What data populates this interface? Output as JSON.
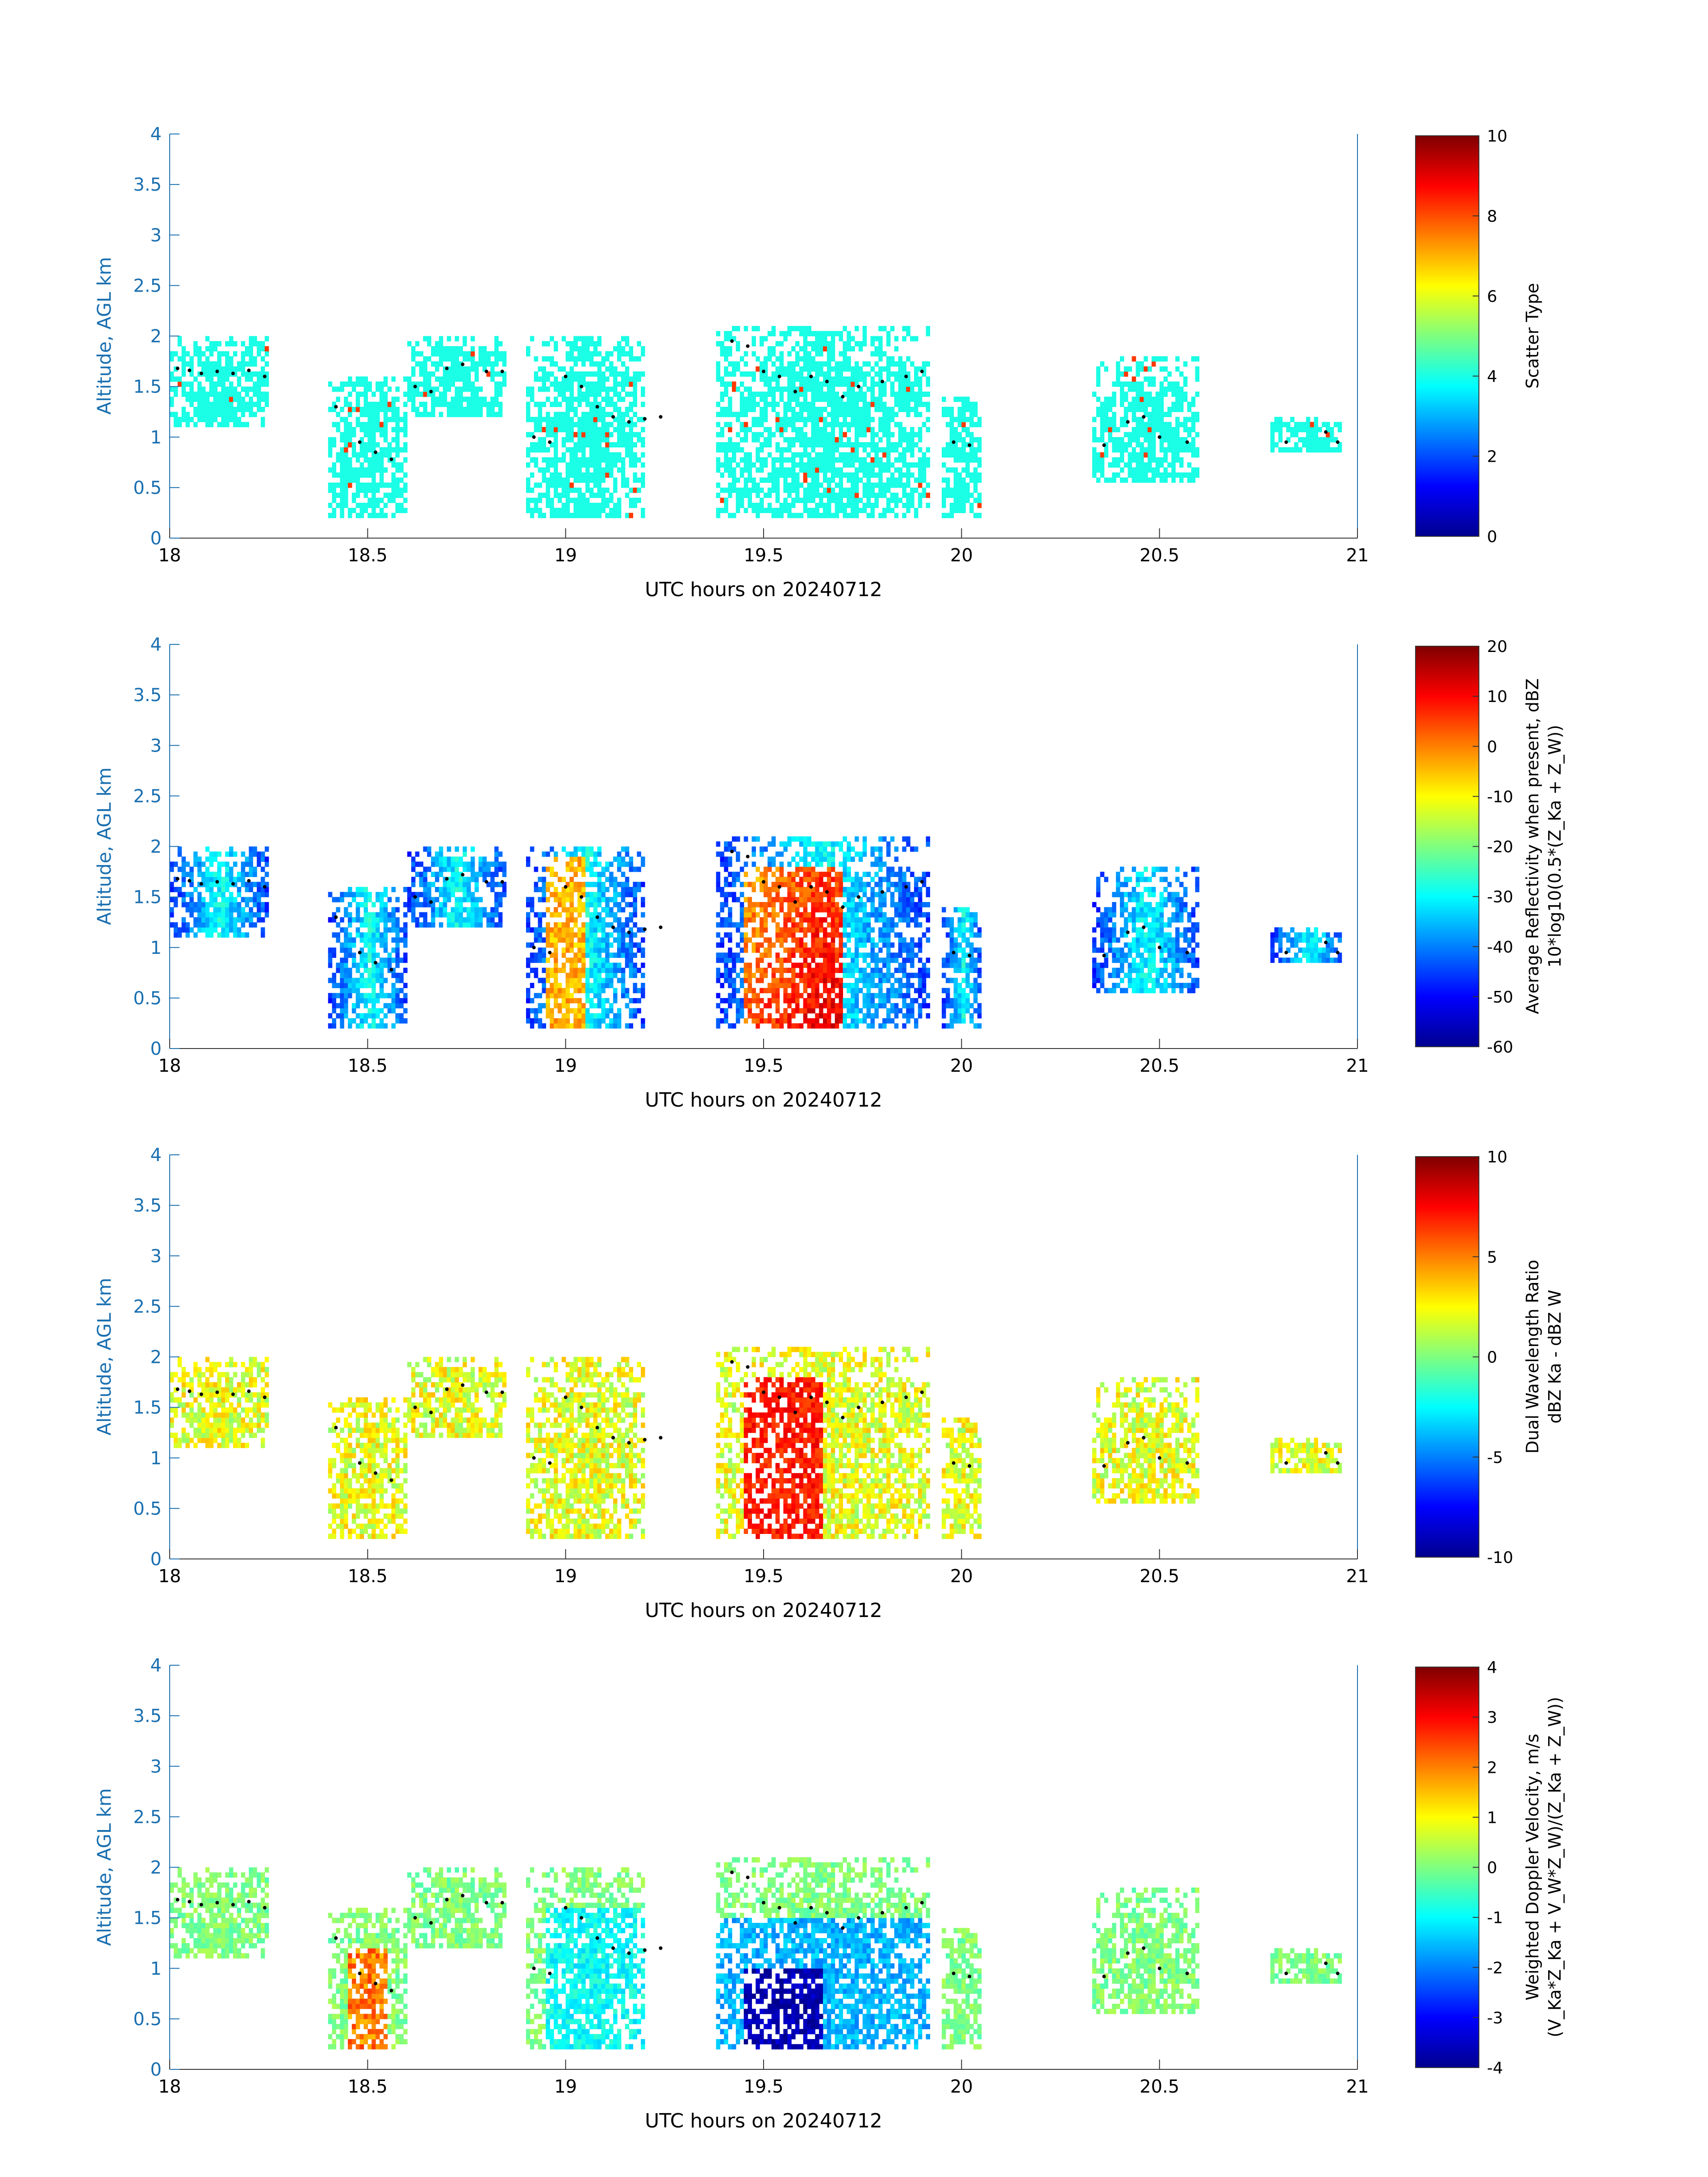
{
  "figure_date": "20240712",
  "chart_data": [
    {
      "type": "heatmap",
      "variable": "Scatter Type",
      "xlabel": "UTC hours on 20240712",
      "ylabel": "Altitude, AGL km",
      "xlim": [
        18,
        21
      ],
      "ylim": [
        0,
        4
      ],
      "x_ticks": [
        "18",
        "18.5",
        "19",
        "19.5",
        "20",
        "20.5",
        "21"
      ],
      "y_ticks": [
        "0",
        "0.5",
        "1",
        "1.5",
        "2",
        "2.5",
        "3",
        "3.5",
        "4"
      ],
      "colorbar": {
        "label_lines": [
          "Scatter Type"
        ],
        "range": [
          0,
          10
        ],
        "ticks": [
          "0",
          "2",
          "4",
          "6",
          "8",
          "10"
        ]
      },
      "dominant_value": 4,
      "colormap": "jet"
    },
    {
      "type": "heatmap",
      "variable": "Average Reflectivity",
      "xlabel": "UTC hours on 20240712",
      "ylabel": "Altitude, AGL km",
      "xlim": [
        18,
        21
      ],
      "ylim": [
        0,
        4
      ],
      "x_ticks": [
        "18",
        "18.5",
        "19",
        "19.5",
        "20",
        "20.5",
        "21"
      ],
      "y_ticks": [
        "0",
        "0.5",
        "1",
        "1.5",
        "2",
        "2.5",
        "3",
        "3.5",
        "4"
      ],
      "colorbar": {
        "label_lines": [
          "Average Reflectivity when present, dBZ",
          "10*log10(0.5*(Zₖₐ + Zᵥᵥ))"
        ],
        "label_display": [
          "Average Reflectivity when present, dBZ",
          "10*log10(0.5*(Z_Ka + Z_W))"
        ],
        "range": [
          -60,
          20
        ],
        "ticks": [
          "-60",
          "-50",
          "-40",
          "-30",
          "-20",
          "-10",
          "0",
          "10",
          "20"
        ]
      },
      "colormap": "jet"
    },
    {
      "type": "heatmap",
      "variable": "Dual Wavelength Ratio",
      "xlabel": "UTC hours on 20240712",
      "ylabel": "Altitude, AGL km",
      "xlim": [
        18,
        21
      ],
      "ylim": [
        0,
        4
      ],
      "x_ticks": [
        "18",
        "18.5",
        "19",
        "19.5",
        "20",
        "20.5",
        "21"
      ],
      "y_ticks": [
        "0",
        "0.5",
        "1",
        "1.5",
        "2",
        "2.5",
        "3",
        "3.5",
        "4"
      ],
      "colorbar": {
        "label_display": [
          "Dual Wavelength Ratio",
          "dBZ Ka - dBZ W"
        ],
        "range": [
          -10,
          10
        ],
        "ticks": [
          "-10",
          "-5",
          "0",
          "5",
          "10"
        ]
      },
      "colormap": "jet"
    },
    {
      "type": "heatmap",
      "variable": "Weighted Doppler Velocity",
      "xlabel": "UTC hours on 20240712",
      "ylabel": "Altitude, AGL km",
      "xlim": [
        18,
        21
      ],
      "ylim": [
        0,
        4
      ],
      "x_ticks": [
        "18",
        "18.5",
        "19",
        "19.5",
        "20",
        "20.5",
        "21"
      ],
      "y_ticks": [
        "0",
        "0.5",
        "1",
        "1.5",
        "2",
        "2.5",
        "3",
        "3.5",
        "4"
      ],
      "colorbar": {
        "label_display": [
          "Weighted Doppler Velocity, m/s",
          "(V_Ka*Z_Ka + V_W*Z_W)/(Z_Ka + Z_W))"
        ],
        "range": [
          -4,
          4
        ],
        "ticks": [
          "-4",
          "-3",
          "-2",
          "-1",
          "0",
          "1",
          "2",
          "3",
          "4"
        ]
      },
      "colormap": "jet"
    }
  ],
  "echo_regions": [
    {
      "t0": 18.0,
      "t1": 18.25,
      "z0": 1.1,
      "z1": 2.0
    },
    {
      "t0": 18.4,
      "t1": 18.6,
      "z0": 0.2,
      "z1": 1.6
    },
    {
      "t0": 18.6,
      "t1": 18.85,
      "z0": 1.2,
      "z1": 2.0
    },
    {
      "t0": 18.9,
      "t1": 19.2,
      "z0": 0.2,
      "z1": 2.0
    },
    {
      "t0": 19.38,
      "t1": 19.92,
      "z0": 0.2,
      "z1": 2.1
    },
    {
      "t0": 19.95,
      "t1": 20.05,
      "z0": 0.2,
      "z1": 1.4
    },
    {
      "t0": 20.33,
      "t1": 20.6,
      "z0": 0.5,
      "z1": 1.8
    },
    {
      "t0": 20.78,
      "t1": 20.97,
      "z0": 0.85,
      "z1": 1.2
    }
  ],
  "cloud_base_points": [
    [
      18.02,
      1.68
    ],
    [
      18.05,
      1.66
    ],
    [
      18.08,
      1.63
    ],
    [
      18.12,
      1.65
    ],
    [
      18.16,
      1.63
    ],
    [
      18.2,
      1.66
    ],
    [
      18.24,
      1.6
    ],
    [
      18.42,
      1.3
    ],
    [
      18.48,
      0.95
    ],
    [
      18.52,
      0.85
    ],
    [
      18.56,
      0.78
    ],
    [
      18.62,
      1.5
    ],
    [
      18.66,
      1.45
    ],
    [
      18.7,
      1.68
    ],
    [
      18.74,
      1.72
    ],
    [
      18.8,
      1.65
    ],
    [
      18.84,
      1.65
    ],
    [
      18.92,
      1.0
    ],
    [
      18.96,
      0.95
    ],
    [
      19.0,
      1.6
    ],
    [
      19.04,
      1.5
    ],
    [
      19.08,
      1.3
    ],
    [
      19.12,
      1.2
    ],
    [
      19.16,
      1.15
    ],
    [
      19.2,
      1.18
    ],
    [
      19.24,
      1.2
    ],
    [
      19.42,
      1.95
    ],
    [
      19.46,
      1.9
    ],
    [
      19.5,
      1.65
    ],
    [
      19.54,
      1.6
    ],
    [
      19.58,
      1.45
    ],
    [
      19.62,
      1.6
    ],
    [
      19.66,
      1.55
    ],
    [
      19.7,
      1.4
    ],
    [
      19.74,
      1.5
    ],
    [
      19.8,
      1.55
    ],
    [
      19.86,
      1.6
    ],
    [
      19.9,
      1.65
    ],
    [
      19.98,
      0.95
    ],
    [
      20.02,
      0.92
    ],
    [
      20.36,
      0.92
    ],
    [
      20.42,
      1.15
    ],
    [
      20.46,
      1.2
    ],
    [
      20.5,
      1.0
    ],
    [
      20.57,
      0.95
    ],
    [
      20.82,
      0.95
    ],
    [
      20.92,
      1.05
    ],
    [
      20.95,
      0.95
    ]
  ]
}
